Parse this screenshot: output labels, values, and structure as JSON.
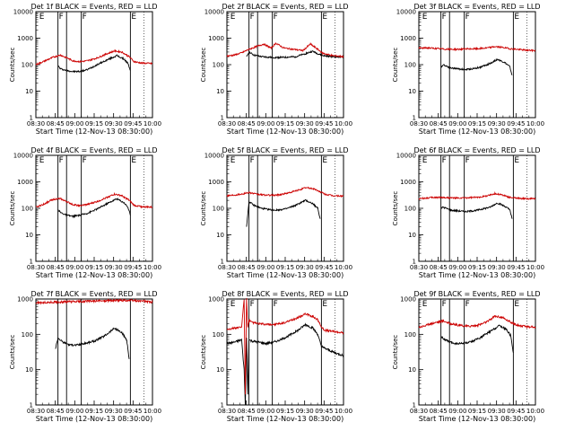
{
  "chart_data": [
    {
      "type": "line",
      "title": "Det 1f BLACK = Events, RED = LLD",
      "xlabel": "Start Time (12-Nov-13 08:30:00)",
      "ylabel": "Counts/sec",
      "x_ticks": [
        "08:30",
        "08:45",
        "09:00",
        "09:15",
        "09:30",
        "09:45",
        "10:00"
      ],
      "y_ticks": [
        "1",
        "10",
        "100",
        "1000",
        "10000"
      ],
      "ylim": [
        1,
        10000
      ],
      "log_y": true,
      "xlim_min": [
        0,
        95
      ],
      "flag_markers": [
        {
          "x": 2,
          "label": "E"
        },
        {
          "x": 18,
          "label": "F"
        },
        {
          "x": 37,
          "label": "F"
        },
        {
          "x": 77,
          "label": "E"
        }
      ],
      "vertical_lines": [
        18,
        25,
        37,
        77
      ],
      "series": [
        {
          "name": "BLACK",
          "color": "#000000",
          "t": [
            18,
            20,
            25,
            30,
            36,
            42,
            50,
            58,
            66,
            72,
            75,
            77
          ],
          "v": [
            90,
            70,
            60,
            55,
            55,
            65,
            100,
            150,
            220,
            160,
            110,
            60
          ]
        },
        {
          "name": "RED",
          "color": "#cc0000",
          "t": [
            0,
            6,
            14,
            20,
            26,
            30,
            36,
            42,
            50,
            58,
            64,
            70,
            76,
            80,
            86,
            95
          ],
          "v": [
            100,
            130,
            190,
            230,
            175,
            140,
            130,
            140,
            180,
            260,
            330,
            300,
            200,
            130,
            115,
            110
          ]
        }
      ]
    },
    {
      "type": "line",
      "title": "Det 2f BLACK = Events, RED = LLD",
      "xlabel": "Start Time (12-Nov-13 08:30:00)",
      "ylabel": "Counts/sec",
      "x_ticks": [
        "08:30",
        "08:45",
        "09:00",
        "09:15",
        "09:30",
        "09:45",
        "10:00"
      ],
      "y_ticks": [
        "1",
        "10",
        "100",
        "1000",
        "10000"
      ],
      "ylim": [
        1,
        10000
      ],
      "log_y": true,
      "xlim_min": [
        0,
        95
      ],
      "flag_markers": [
        {
          "x": 2,
          "label": "E"
        },
        {
          "x": 18,
          "label": "F"
        },
        {
          "x": 37,
          "label": "F"
        },
        {
          "x": 77,
          "label": "E"
        }
      ],
      "vertical_lines": [
        18,
        25,
        37,
        77
      ],
      "series": [
        {
          "name": "BLACK",
          "color": "#000000",
          "t": [
            16,
            18,
            22,
            28,
            34,
            40,
            48,
            56,
            64,
            70,
            74,
            78,
            86,
            95
          ],
          "v": [
            190,
            300,
            230,
            200,
            190,
            185,
            190,
            200,
            260,
            320,
            260,
            220,
            200,
            190
          ]
        },
        {
          "name": "RED",
          "color": "#cc0000",
          "t": [
            0,
            6,
            12,
            18,
            24,
            30,
            36,
            40,
            46,
            54,
            62,
            68,
            74,
            78,
            86,
            95
          ],
          "v": [
            210,
            230,
            280,
            380,
            480,
            600,
            420,
            650,
            430,
            380,
            340,
            600,
            380,
            270,
            220,
            200
          ]
        }
      ]
    },
    {
      "type": "line",
      "title": "Det 3f BLACK = Events, RED = LLD",
      "xlabel": "Start Time (12-Nov-13 08:30:00)",
      "ylabel": "Counts/sec",
      "x_ticks": [
        "08:30",
        "08:45",
        "09:00",
        "09:15",
        "09:30",
        "09:45",
        "10:00"
      ],
      "y_ticks": [
        "1",
        "10",
        "100",
        "1000",
        "10000"
      ],
      "ylim": [
        1,
        10000
      ],
      "log_y": true,
      "xlim_min": [
        0,
        95
      ],
      "flag_markers": [
        {
          "x": 2,
          "label": "E"
        },
        {
          "x": 18,
          "label": "F"
        },
        {
          "x": 37,
          "label": "F"
        },
        {
          "x": 77,
          "label": "E"
        }
      ],
      "vertical_lines": [
        18,
        25,
        37,
        77
      ],
      "series": [
        {
          "name": "BLACK",
          "color": "#000000",
          "t": [
            18,
            20,
            26,
            32,
            38,
            44,
            50,
            58,
            64,
            70,
            74,
            76
          ],
          "v": [
            80,
            100,
            75,
            70,
            65,
            70,
            80,
            110,
            160,
            120,
            85,
            40
          ]
        },
        {
          "name": "RED",
          "color": "#cc0000",
          "t": [
            0,
            8,
            16,
            24,
            32,
            40,
            48,
            56,
            62,
            68,
            74,
            80,
            88,
            95
          ],
          "v": [
            420,
            430,
            400,
            380,
            380,
            390,
            400,
            430,
            480,
            450,
            400,
            380,
            350,
            340
          ]
        }
      ]
    },
    {
      "type": "line",
      "title": "Det 4f BLACK = Events, RED = LLD",
      "xlabel": "Start Time (12-Nov-13 08:30:00)",
      "ylabel": "Counts/sec",
      "x_ticks": [
        "08:30",
        "08:45",
        "09:00",
        "09:15",
        "09:30",
        "09:45",
        "10:00"
      ],
      "y_ticks": [
        "1",
        "10",
        "100",
        "1000",
        "10000"
      ],
      "ylim": [
        1,
        10000
      ],
      "log_y": true,
      "xlim_min": [
        0,
        95
      ],
      "flag_markers": [
        {
          "x": 2,
          "label": "E"
        },
        {
          "x": 18,
          "label": "F"
        },
        {
          "x": 37,
          "label": "F"
        },
        {
          "x": 77,
          "label": "E"
        }
      ],
      "vertical_lines": [
        18,
        25,
        37,
        77
      ],
      "series": [
        {
          "name": "BLACK",
          "color": "#000000",
          "t": [
            18,
            20,
            25,
            30,
            36,
            42,
            50,
            58,
            66,
            72,
            75,
            77
          ],
          "v": [
            90,
            70,
            55,
            50,
            55,
            65,
            95,
            150,
            230,
            160,
            110,
            55
          ]
        },
        {
          "name": "RED",
          "color": "#cc0000",
          "t": [
            0,
            6,
            14,
            20,
            26,
            30,
            36,
            42,
            50,
            58,
            64,
            70,
            76,
            80,
            86,
            95
          ],
          "v": [
            110,
            140,
            220,
            230,
            170,
            140,
            125,
            140,
            180,
            260,
            340,
            300,
            200,
            130,
            115,
            110
          ]
        }
      ]
    },
    {
      "type": "line",
      "title": "Det 5f BLACK = Events, RED = LLD",
      "xlabel": "Start Time (12-Nov-13 08:30:00)",
      "ylabel": "Counts/sec",
      "x_ticks": [
        "08:30",
        "08:45",
        "09:00",
        "09:15",
        "09:30",
        "09:45",
        "10:00"
      ],
      "y_ticks": [
        "1",
        "10",
        "100",
        "1000",
        "10000"
      ],
      "ylim": [
        1,
        10000
      ],
      "log_y": true,
      "xlim_min": [
        0,
        95
      ],
      "flag_markers": [
        {
          "x": 2,
          "label": "E"
        },
        {
          "x": 18,
          "label": "F"
        },
        {
          "x": 37,
          "label": "F"
        },
        {
          "x": 77,
          "label": "E"
        }
      ],
      "vertical_lines": [
        18,
        25,
        37,
        77
      ],
      "series": [
        {
          "name": "BLACK",
          "color": "#000000",
          "t": [
            16,
            18,
            22,
            28,
            34,
            40,
            48,
            56,
            64,
            70,
            74,
            76
          ],
          "v": [
            20,
            180,
            130,
            100,
            90,
            85,
            95,
            130,
            200,
            150,
            100,
            40
          ]
        },
        {
          "name": "RED",
          "color": "#cc0000",
          "t": [
            0,
            6,
            14,
            18,
            24,
            30,
            36,
            42,
            50,
            58,
            64,
            70,
            76,
            80,
            86,
            95
          ],
          "v": [
            300,
            320,
            360,
            400,
            340,
            320,
            310,
            320,
            380,
            480,
            600,
            560,
            420,
            340,
            300,
            290
          ]
        }
      ]
    },
    {
      "type": "line",
      "title": "Det 6f BLACK = Events, RED = LLD",
      "xlabel": "Start Time (12-Nov-13 08:30:00)",
      "ylabel": "Counts/sec",
      "x_ticks": [
        "08:30",
        "08:45",
        "09:00",
        "09:15",
        "09:30",
        "09:45",
        "10:00"
      ],
      "y_ticks": [
        "1",
        "10",
        "100",
        "1000",
        "10000"
      ],
      "ylim": [
        1,
        10000
      ],
      "log_y": true,
      "xlim_min": [
        0,
        95
      ],
      "flag_markers": [
        {
          "x": 2,
          "label": "E"
        },
        {
          "x": 18,
          "label": "F"
        },
        {
          "x": 37,
          "label": "F"
        },
        {
          "x": 77,
          "label": "E"
        }
      ],
      "vertical_lines": [
        18,
        25,
        37,
        77
      ],
      "series": [
        {
          "name": "BLACK",
          "color": "#000000",
          "t": [
            18,
            20,
            26,
            32,
            38,
            44,
            50,
            58,
            64,
            70,
            74,
            76
          ],
          "v": [
            100,
            110,
            85,
            80,
            75,
            80,
            90,
            110,
            160,
            120,
            90,
            40
          ]
        },
        {
          "name": "RED",
          "color": "#cc0000",
          "t": [
            0,
            8,
            16,
            24,
            32,
            40,
            48,
            56,
            62,
            68,
            74,
            80,
            88,
            95
          ],
          "v": [
            230,
            250,
            260,
            250,
            240,
            250,
            260,
            300,
            360,
            320,
            260,
            240,
            230,
            230
          ]
        }
      ]
    },
    {
      "type": "line",
      "title": "Det 7f BLACK = Events, RED = LLD",
      "xlabel": "Start Time (12-Nov-13 08:30:00)",
      "ylabel": "Counts/sec",
      "x_ticks": [
        "08:30",
        "08:45",
        "09:00",
        "09:15",
        "09:30",
        "09:45",
        "10:00"
      ],
      "y_ticks": [
        "1",
        "10",
        "100",
        "1000"
      ],
      "ylim": [
        1,
        1000
      ],
      "log_y": true,
      "xlim_min": [
        0,
        95
      ],
      "flag_markers": [],
      "vertical_lines": [
        18,
        25,
        37,
        77
      ],
      "series": [
        {
          "name": "BLACK",
          "color": "#000000",
          "t": [
            16,
            18,
            22,
            28,
            34,
            40,
            48,
            56,
            64,
            70,
            74,
            76
          ],
          "v": [
            40,
            80,
            60,
            50,
            50,
            55,
            65,
            90,
            150,
            110,
            70,
            20
          ]
        },
        {
          "name": "RED",
          "color": "#cc0000",
          "t": [
            0,
            10,
            20,
            30,
            40,
            50,
            60,
            70,
            80,
            90,
            95
          ],
          "v": [
            780,
            800,
            820,
            840,
            860,
            880,
            900,
            920,
            900,
            860,
            820
          ]
        }
      ]
    },
    {
      "type": "line",
      "title": "Det 8f BLACK = Events, RED = LLD",
      "xlabel": "Start Time (12-Nov-13 08:30:00)",
      "ylabel": "Counts/sec",
      "x_ticks": [
        "08:30",
        "08:45",
        "09:00",
        "09:15",
        "09:30",
        "09:45",
        "10:00"
      ],
      "y_ticks": [
        "1",
        "10",
        "100",
        "1000"
      ],
      "ylim": [
        1,
        1000
      ],
      "log_y": true,
      "xlim_min": [
        0,
        95
      ],
      "flag_markers": [
        {
          "x": 2,
          "label": "E"
        },
        {
          "x": 18,
          "label": "F"
        },
        {
          "x": 37,
          "label": "F"
        },
        {
          "x": 77,
          "label": "E"
        }
      ],
      "vertical_lines": [
        18,
        25,
        37,
        77
      ],
      "series": [
        {
          "name": "BLACK",
          "color": "#000000",
          "t": [
            0,
            6,
            12,
            14,
            15,
            16,
            17,
            18,
            20,
            26,
            32,
            38,
            44,
            50,
            58,
            64,
            70,
            74,
            77,
            80,
            88,
            95
          ],
          "v": [
            55,
            60,
            70,
            10,
            1,
            80,
            2,
            70,
            65,
            60,
            55,
            60,
            70,
            90,
            130,
            190,
            150,
            100,
            45,
            40,
            30,
            25
          ]
        },
        {
          "name": "RED",
          "color": "#cc0000",
          "t": [
            0,
            6,
            12,
            14,
            15,
            16,
            17,
            18,
            20,
            26,
            32,
            38,
            44,
            50,
            58,
            64,
            70,
            74,
            77,
            80,
            88,
            95
          ],
          "v": [
            140,
            150,
            160,
            1000,
            2,
            1000,
            150,
            250,
            220,
            200,
            190,
            190,
            200,
            230,
            300,
            380,
            320,
            260,
            160,
            130,
            120,
            110
          ]
        }
      ]
    },
    {
      "type": "line",
      "title": "Det 9f BLACK = Events, RED = LLD",
      "xlabel": "Start Time (12-Nov-13 08:30:00)",
      "ylabel": "Counts/sec",
      "x_ticks": [
        "08:30",
        "08:45",
        "09:00",
        "09:15",
        "09:30",
        "09:45",
        "10:00"
      ],
      "y_ticks": [
        "1",
        "10",
        "100",
        "1000"
      ],
      "ylim": [
        1,
        1000
      ],
      "log_y": true,
      "xlim_min": [
        0,
        95
      ],
      "flag_markers": [
        {
          "x": 2,
          "label": "E"
        },
        {
          "x": 18,
          "label": "F"
        },
        {
          "x": 37,
          "label": "F"
        },
        {
          "x": 77,
          "label": "E"
        }
      ],
      "vertical_lines": [
        18,
        25,
        37,
        77
      ],
      "series": [
        {
          "name": "BLACK",
          "color": "#000000",
          "t": [
            18,
            20,
            25,
            30,
            36,
            42,
            50,
            58,
            66,
            72,
            75,
            77
          ],
          "v": [
            90,
            75,
            60,
            55,
            55,
            60,
            80,
            120,
            180,
            130,
            90,
            30
          ]
        },
        {
          "name": "RED",
          "color": "#cc0000",
          "t": [
            0,
            6,
            14,
            20,
            26,
            32,
            40,
            48,
            56,
            62,
            68,
            74,
            80,
            88,
            95
          ],
          "v": [
            160,
            180,
            220,
            240,
            200,
            180,
            170,
            180,
            230,
            330,
            300,
            230,
            180,
            165,
            160
          ]
        }
      ]
    }
  ]
}
